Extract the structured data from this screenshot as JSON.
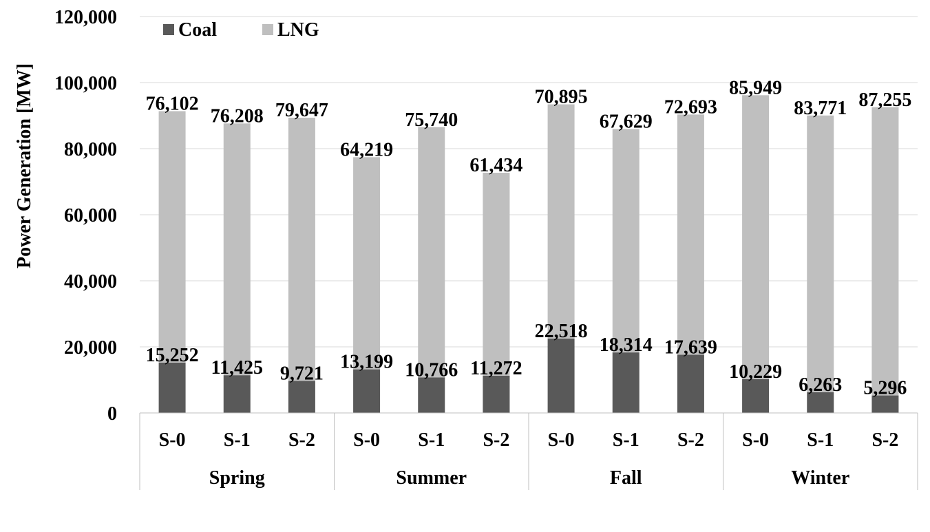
{
  "chart_data": {
    "type": "bar",
    "stacked": true,
    "ylabel": "Power Generation [MW]",
    "xlabel": "",
    "ylim": [
      0,
      120000
    ],
    "y_ticks": [
      0,
      20000,
      40000,
      60000,
      80000,
      100000,
      120000
    ],
    "y_tick_labels": [
      "0",
      "20,000",
      "40,000",
      "60,000",
      "80,000",
      "100,000",
      "120,000"
    ],
    "grid": true,
    "legend_position": "top-left",
    "groups": [
      {
        "label": "Spring",
        "categories": [
          "S-0",
          "S-1",
          "S-2"
        ]
      },
      {
        "label": "Summer",
        "categories": [
          "S-0",
          "S-1",
          "S-2"
        ]
      },
      {
        "label": "Fall",
        "categories": [
          "S-0",
          "S-1",
          "S-2"
        ]
      },
      {
        "label": "Winter",
        "categories": [
          "S-0",
          "S-1",
          "S-2"
        ]
      }
    ],
    "series": [
      {
        "name": "Coal",
        "color": "#595959",
        "values": [
          15252,
          11425,
          9721,
          13199,
          10766,
          11272,
          22518,
          18314,
          17639,
          10229,
          6263,
          5296
        ],
        "labels": [
          "15,252",
          "11,425",
          "9,721",
          "13,199",
          "10,766",
          "11,272",
          "22,518",
          "18,314",
          "17,639",
          "10,229",
          "6,263",
          "5,296"
        ]
      },
      {
        "name": "LNG",
        "color": "#bfbfbf",
        "values": [
          76102,
          76208,
          79647,
          64219,
          75740,
          61434,
          70895,
          67629,
          72693,
          85949,
          83771,
          87255
        ],
        "labels": [
          "76,102",
          "76,208",
          "79,647",
          "64,219",
          "75,740",
          "61,434",
          "70,895",
          "67,629",
          "72,693",
          "85,949",
          "83,771",
          "87,255"
        ]
      }
    ]
  }
}
